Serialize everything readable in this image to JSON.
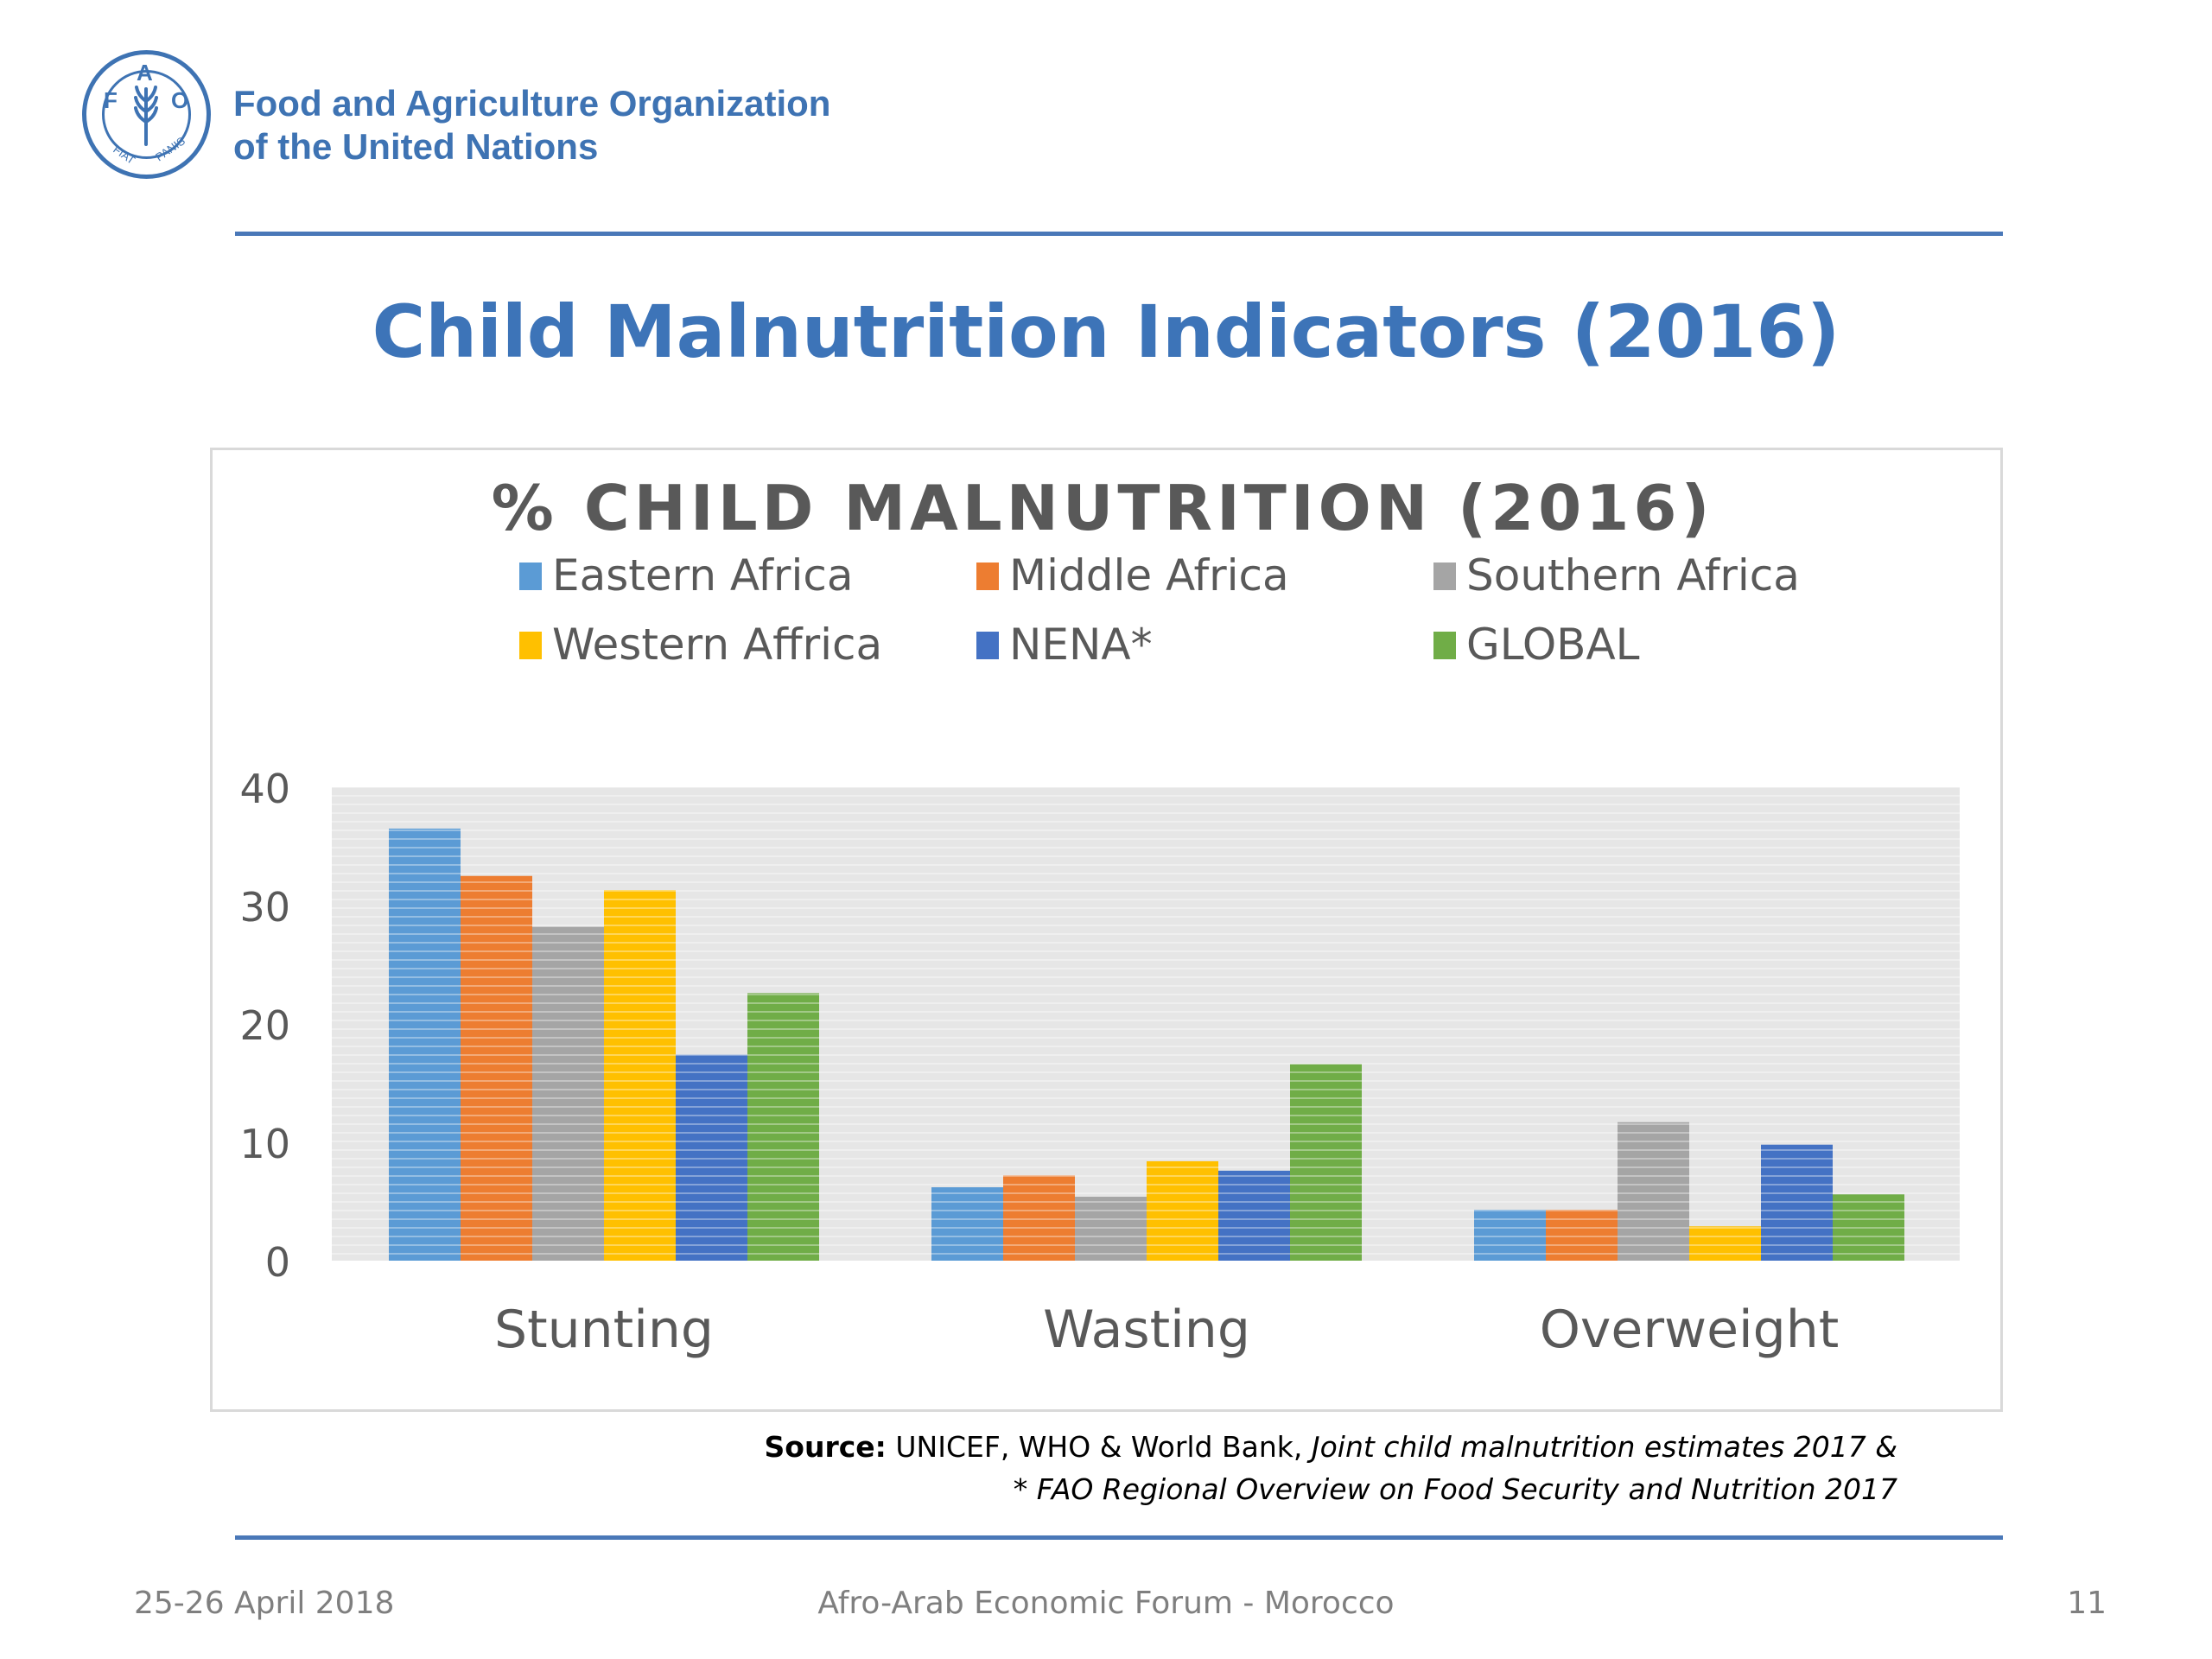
{
  "organization": {
    "name_line1": "Food and Agriculture Organization",
    "name_line2": "of the United Nations",
    "logo_letters": [
      "F",
      "A",
      "O"
    ],
    "logo_motto_left": "FIAT",
    "logo_motto_right": "PANIS",
    "brand_color": "#3e73b3"
  },
  "slide": {
    "title": "Child Malnutrition Indicators (2016)"
  },
  "chart_data": {
    "type": "bar",
    "title": "% CHILD MALNUTRITION (2016)",
    "categories": [
      "Stunting",
      "Wasting",
      "Overweight"
    ],
    "series": [
      {
        "name": "Eastern Africa",
        "color": "#5b9bd5",
        "values": [
          36.5,
          6.2,
          4.3
        ]
      },
      {
        "name": "Middle Africa",
        "color": "#ed7d31",
        "values": [
          32.5,
          7.2,
          4.3
        ]
      },
      {
        "name": "Southern Africa",
        "color": "#a5a5a5",
        "values": [
          28.2,
          5.4,
          11.7
        ]
      },
      {
        "name": "Western Affrica",
        "color": "#ffc000",
        "values": [
          31.3,
          8.4,
          2.9
        ]
      },
      {
        "name": "NENA*",
        "color": "#4472c4",
        "values": [
          17.4,
          7.6,
          9.8
        ]
      },
      {
        "name": "GLOBAL",
        "color": "#70ad47",
        "values": [
          22.6,
          16.6,
          5.6
        ]
      }
    ],
    "ylim": [
      0,
      40
    ],
    "yticks": [
      "0",
      "10",
      "20",
      "30",
      "40"
    ],
    "legend_position": "top",
    "grid": false,
    "plot_background": "#e6e6e6"
  },
  "source": {
    "label": "Source:",
    "text1": " UNICEF, WHO & World Bank, ",
    "italic1": "Joint child malnutrition estimates 2017 &",
    "italic2": "* FAO Regional Overview on Food Security and Nutrition 2017"
  },
  "footer": {
    "date": "25-26 April 2018",
    "event": "Afro-Arab Economic Forum - Morocco",
    "page_number": "11"
  }
}
